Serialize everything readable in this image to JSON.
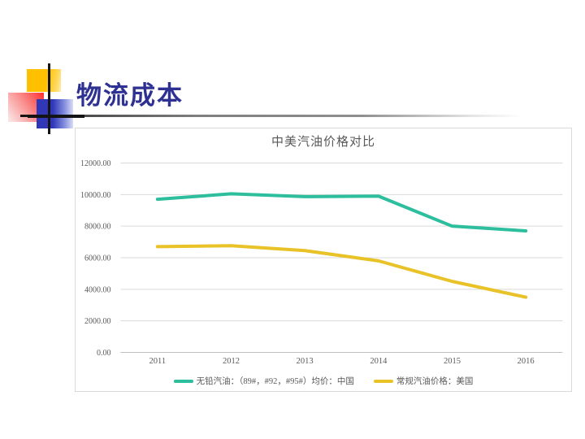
{
  "slide": {
    "title": "物流成本",
    "title_color": "#2E3192",
    "background_color": "#FFFFFF"
  },
  "chart_data": {
    "type": "line",
    "title": "中美汽油价格对比",
    "title_color": "#595959",
    "categories": [
      "2011",
      "2012",
      "2013",
      "2014",
      "2015",
      "2016"
    ],
    "series": [
      {
        "name": "无铅汽油：（89#，#92，#95#）均价：中国",
        "color": "#2CBE9D",
        "values": [
          9700,
          10050,
          9870,
          9900,
          8000,
          7700
        ]
      },
      {
        "name": "常规汽油价格：美国",
        "color": "#E8C227",
        "values": [
          6700,
          6760,
          6450,
          5800,
          4500,
          3500
        ]
      }
    ],
    "xlabel": "",
    "ylabel": "",
    "ylim": [
      0,
      12000
    ],
    "yticks": [
      "0.00",
      "2000.00",
      "4000.00",
      "6000.00",
      "8000.00",
      "10000.00",
      "12000.00"
    ],
    "grid": true,
    "gridline_color": "#D9D9D9",
    "axis_color": "#BFBFBF",
    "legend_position": "bottom"
  }
}
